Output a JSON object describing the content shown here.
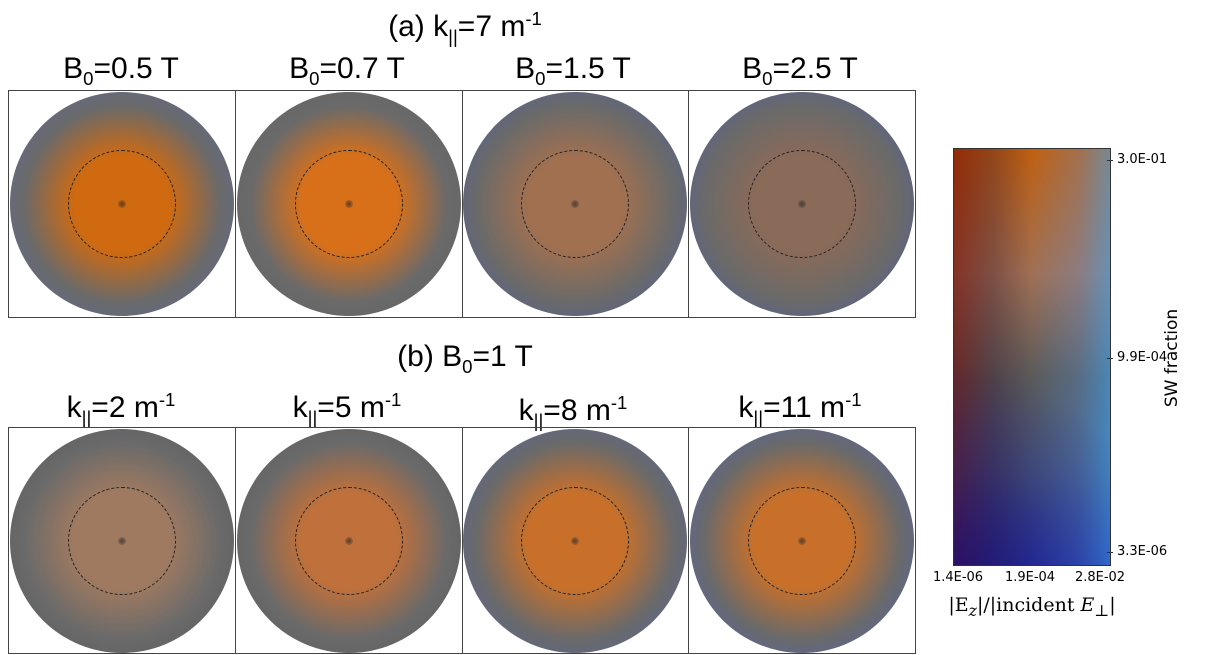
{
  "row_a": {
    "title_prefix": "(a) k",
    "title_sub": "||",
    "title_mid": "=7 m",
    "title_sup": "-1",
    "columns": [
      {
        "prefix": "B",
        "sub": "0",
        "rest": "=0.5 T",
        "sup": ""
      },
      {
        "prefix": "B",
        "sub": "0",
        "rest": "=0.7 T",
        "sup": ""
      },
      {
        "prefix": "B",
        "sub": "0",
        "rest": "=1.5 T",
        "sup": ""
      },
      {
        "prefix": "B",
        "sub": "0",
        "rest": "=2.5 T",
        "sup": ""
      }
    ]
  },
  "row_b": {
    "title_prefix": "(b) B",
    "title_sub": "0",
    "title_mid": "=1 T",
    "title_sup": "",
    "columns": [
      {
        "prefix": "k",
        "sub": "||",
        "rest": "=2 m",
        "sup": "-1"
      },
      {
        "prefix": "k",
        "sub": "||",
        "rest": "=5 m",
        "sup": "-1"
      },
      {
        "prefix": "k",
        "sub": "||",
        "rest": "=8 m",
        "sup": "-1"
      },
      {
        "prefix": "k",
        "sub": "||",
        "rest": "=11 m",
        "sup": "-1"
      }
    ]
  },
  "colorbar": {
    "ylabel": "SW fraction",
    "yticks": [
      "3.0E-01",
      "9.9E-04",
      "3.3E-06"
    ],
    "xticks": [
      "1.4E-06",
      "1.9E-04",
      "2.8E-02"
    ],
    "xlabel_left": "|E",
    "xlabel_sub": "z",
    "xlabel_mid": "|/|incident ",
    "xlabel_E": "E",
    "xlabel_perp": "⊥",
    "xlabel_end": "|",
    "colors": {
      "high_sw": "#c06010",
      "low_sw": "#2a3aa0",
      "mid": "#5a5a5a"
    }
  },
  "discs": {
    "row_a": [
      {
        "core": "#d06a10",
        "edge": "#5a6aa8"
      },
      {
        "core": "#d8701a",
        "edge": "#606060"
      },
      {
        "core": "#a07050",
        "edge": "#4a5aa8"
      },
      {
        "core": "#8a6a58",
        "edge": "#4858b0"
      }
    ],
    "row_b": [
      {
        "core": "#a07a60",
        "edge": "#555555"
      },
      {
        "core": "#c0703a",
        "edge": "#585858"
      },
      {
        "core": "#c8702a",
        "edge": "#5060a8"
      },
      {
        "core": "#c8702a",
        "edge": "#4a60c0"
      }
    ]
  }
}
